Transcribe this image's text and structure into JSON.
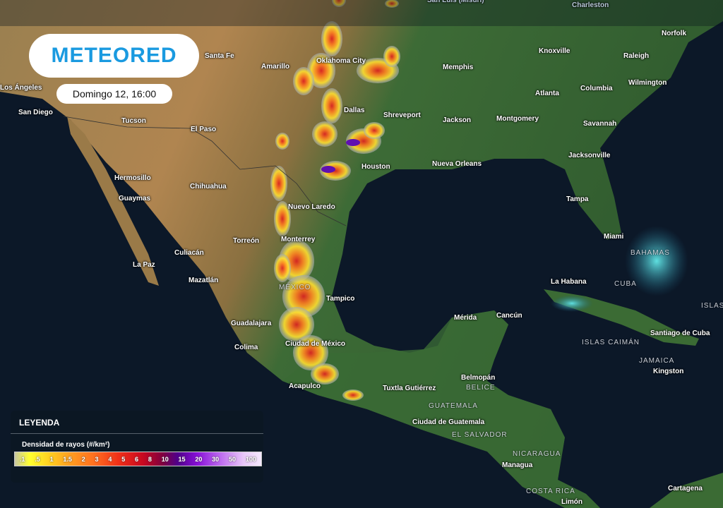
{
  "brand": {
    "logo_text": "METEORED"
  },
  "timestamp": "Domingo 12, 16:00",
  "legend": {
    "title": "LEYENDA",
    "subtitle": "Densidad de rayos (#/km²)",
    "scale": [
      ".1",
      ".5",
      "1",
      "1.5",
      "2",
      "3",
      "4",
      "5",
      "6",
      "8",
      "10",
      "15",
      "20",
      "30",
      "50",
      "100"
    ]
  },
  "cities": [
    "San Luis (Misuri)",
    "Charleston",
    "Norfolk",
    "Santa Fe",
    "Amarillo",
    "Oklahoma City",
    "Knoxville",
    "Raleigh",
    "Memphis",
    "Los Ángeles",
    "Atlanta",
    "Columbia",
    "Wilmington",
    "Dallas",
    "Shreveport",
    "Jackson",
    "Montgomery",
    "San Diego",
    "Tucson",
    "Savannah",
    "El Paso",
    "Jacksonville",
    "Houston",
    "Nueva Orleans",
    "Hermosillo",
    "Chihuahua",
    "Guaymas",
    "Tampa",
    "Nuevo Laredo",
    "Miami",
    "Torreón",
    "Monterrey",
    "Culiacán",
    "La Paz",
    "Mazatlán",
    "La Habana",
    "Tampico",
    "Mérida",
    "Cancún",
    "Guadalajara",
    "Santiago de Cuba",
    "Ciudad de México",
    "Colima",
    "Kingston",
    "Belmopán",
    "Acapulco",
    "Tuxtla Gutiérrez",
    "Ciudad de Guatemala",
    "Managua",
    "Limón",
    "Cartagena"
  ],
  "countries": [
    "BAHAMAS",
    "CUBA",
    "MÉXICO",
    "ISLAS",
    "ISLAS CAIMÁN",
    "JAMAICA",
    "BELICE",
    "GUATEMALA",
    "EL SALVADOR",
    "NICARAGUA",
    "COSTA RICA"
  ],
  "colors": {
    "brand": "#1a9ae0",
    "ocean": "#0c1828",
    "land_arid": "#a8844e",
    "land_green": "#3d6b36"
  }
}
